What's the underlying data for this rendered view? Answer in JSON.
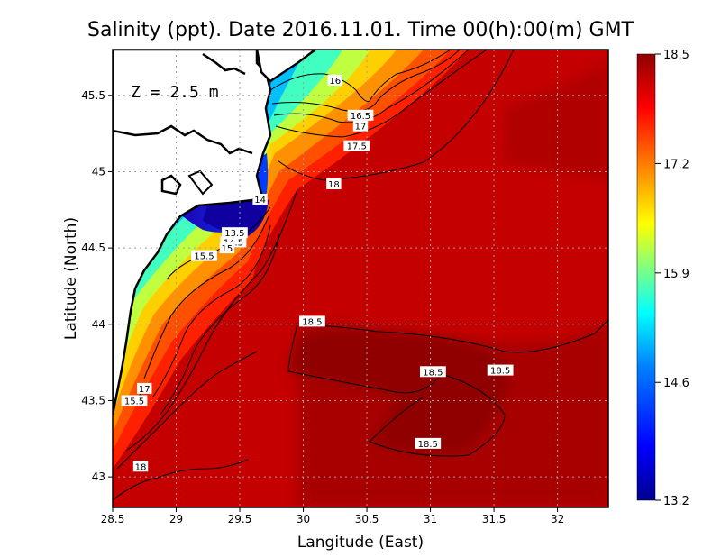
{
  "chart_data": {
    "type": "heatmap",
    "title": "Salinity (ppt). Date 2016.11.01. Time 00(h):00(m) GMT",
    "xlabel": "Langitude (East)",
    "ylabel": "Latitude (North)",
    "xlim": [
      28.5,
      32.4
    ],
    "ylim": [
      42.8,
      45.8
    ],
    "x_ticks": [
      "28.5",
      "29",
      "29.5",
      "30",
      "30.5",
      "31",
      "31.5",
      "32"
    ],
    "y_ticks": [
      "43",
      "43.5",
      "44",
      "44.5",
      "45",
      "45.5"
    ],
    "grid": true,
    "annotation": "Z = 2.5 m",
    "colorbar": {
      "range": [
        13.2,
        18.5
      ],
      "ticks": [
        "18.5",
        "17.2",
        "15.9",
        "14.6",
        "13.2"
      ],
      "colors": [
        "#00008f",
        "#0000ff",
        "#0080ff",
        "#00ffff",
        "#80ff80",
        "#ffff00",
        "#ff8000",
        "#ff0000",
        "#8f0000"
      ]
    },
    "contour_labels": [
      {
        "text": "16",
        "lon": 30.25,
        "lat": 45.6
      },
      {
        "text": "16.5",
        "lon": 30.45,
        "lat": 45.37
      },
      {
        "text": "17",
        "lon": 30.45,
        "lat": 45.3
      },
      {
        "text": "17.5",
        "lon": 30.42,
        "lat": 45.17
      },
      {
        "text": "18",
        "lon": 30.24,
        "lat": 44.92
      },
      {
        "text": "14",
        "lon": 29.66,
        "lat": 44.82
      },
      {
        "text": "13.5",
        "lon": 29.46,
        "lat": 44.6
      },
      {
        "text": "14.5",
        "lon": 29.45,
        "lat": 44.54
      },
      {
        "text": "15",
        "lon": 29.4,
        "lat": 44.5
      },
      {
        "text": "15.5",
        "lon": 29.22,
        "lat": 44.45
      },
      {
        "text": "18.5",
        "lon": 30.07,
        "lat": 44.02
      },
      {
        "text": "18.5",
        "lon": 31.02,
        "lat": 43.69
      },
      {
        "text": "18.5",
        "lon": 31.55,
        "lat": 43.7
      },
      {
        "text": "18.5",
        "lon": 30.98,
        "lat": 43.22
      },
      {
        "text": "17",
        "lon": 28.75,
        "lat": 43.58
      },
      {
        "text": "15.5",
        "lon": 28.67,
        "lat": 43.5
      },
      {
        "text": "18",
        "lon": 28.72,
        "lat": 43.07
      }
    ]
  }
}
